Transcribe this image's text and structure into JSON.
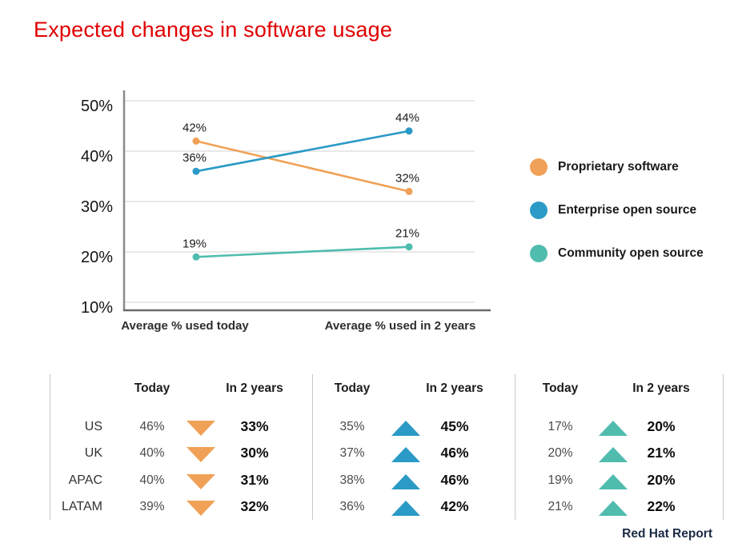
{
  "title": "Expected changes in software usage",
  "footer": "Red Hat Report",
  "accent_color": "#e00000",
  "chart_data": {
    "type": "line",
    "title": "Expected changes in software usage",
    "categories": [
      "Average % used today",
      "Average % used in 2 years"
    ],
    "series": [
      {
        "name": "Proprietary software",
        "color": "#f0a157",
        "values": [
          42,
          32
        ],
        "labels": [
          "42%",
          "32%"
        ]
      },
      {
        "name": "Enterprise open source",
        "color": "#2b9ac6",
        "values": [
          36,
          44
        ],
        "labels": [
          "36%",
          "44%"
        ]
      },
      {
        "name": "Community open source",
        "color": "#4fbcae",
        "values": [
          19,
          21
        ],
        "labels": [
          "19%",
          "21%"
        ]
      }
    ],
    "y_axis": [
      {
        "label": "50%",
        "value": 50
      },
      {
        "label": "40%",
        "value": 40
      },
      {
        "label": "30%",
        "value": 30
      },
      {
        "label": "20%",
        "value": 20
      },
      {
        "label": "10%",
        "value": 10
      }
    ],
    "ylim": [
      10,
      50
    ],
    "grid": true,
    "legend_position": "right"
  },
  "tables": [
    {
      "series": "Proprietary software",
      "trend": "down",
      "color": "#f0a157",
      "headers": {
        "today": "Today",
        "in2years": "In 2 years"
      },
      "rows": [
        {
          "region": "US",
          "today": "46%",
          "in2years": "33%"
        },
        {
          "region": "UK",
          "today": "40%",
          "in2years": "30%"
        },
        {
          "region": "APAC",
          "today": "40%",
          "in2years": "31%"
        },
        {
          "region": "LATAM",
          "today": "39%",
          "in2years": "32%"
        }
      ]
    },
    {
      "series": "Enterprise open source",
      "trend": "up",
      "color": "#2b9ac6",
      "headers": {
        "today": "Today",
        "in2years": "In 2 years"
      },
      "rows": [
        {
          "today": "35%",
          "in2years": "45%"
        },
        {
          "today": "37%",
          "in2years": "46%"
        },
        {
          "today": "38%",
          "in2years": "46%"
        },
        {
          "today": "36%",
          "in2years": "42%"
        }
      ]
    },
    {
      "series": "Community open source",
      "trend": "up",
      "color": "#4fbcae",
      "headers": {
        "today": "Today",
        "in2years": "In 2 years"
      },
      "rows": [
        {
          "today": "17%",
          "in2years": "20%"
        },
        {
          "today": "20%",
          "in2years": "21%"
        },
        {
          "today": "19%",
          "in2years": "20%"
        },
        {
          "today": "21%",
          "in2years": "22%"
        }
      ]
    }
  ]
}
